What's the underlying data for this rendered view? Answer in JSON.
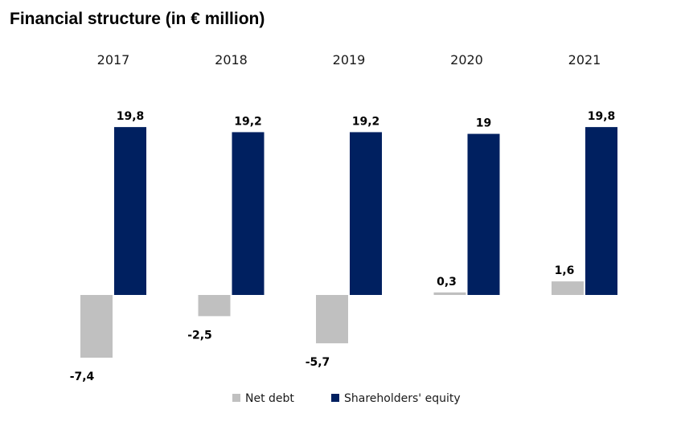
{
  "chart_data": {
    "type": "bar",
    "title": "Financial structure (in € million)",
    "categories": [
      "2017",
      "2018",
      "2019",
      "2020",
      "2021"
    ],
    "series": [
      {
        "name": "Net debt",
        "color": "#c0c0c0",
        "values": [
          -7.4,
          -2.5,
          -5.7,
          0.3,
          1.6
        ],
        "labels": [
          "-7,4",
          "-2,5",
          "-5,7",
          "0,3",
          "1,6"
        ]
      },
      {
        "name": "Shareholders' equity",
        "color": "#002060",
        "values": [
          19.8,
          19.2,
          19.2,
          19.0,
          19.8
        ],
        "labels": [
          "19,8",
          "19,2",
          "19,2",
          "19",
          "19,8"
        ]
      }
    ],
    "category_axis_position": "top",
    "legend": "bottom",
    "grid": false
  }
}
